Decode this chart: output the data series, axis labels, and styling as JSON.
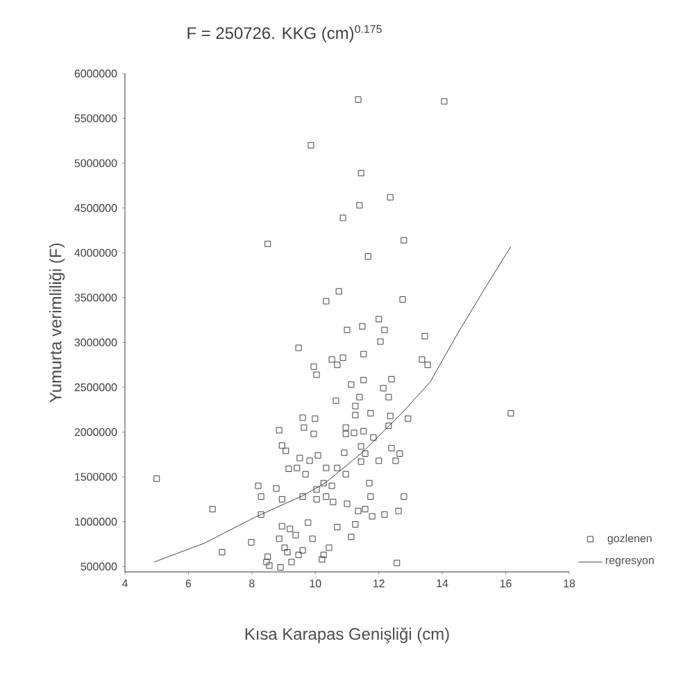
{
  "chart_data": {
    "type": "scatter",
    "title": "F = 250726. KKG (cm)$^{0.175}$",
    "xlabel": "Kısa Karapas Genişliği (cm)",
    "ylabel": "Yumurta verimliliği (F)",
    "xlim": [
      4,
      18
    ],
    "xticks": [
      4,
      6,
      8,
      10,
      12,
      14,
      16,
      18
    ],
    "ylim": [
      440000,
      6000000
    ],
    "yticks": [
      500000,
      1000000,
      1500000,
      2000000,
      2500000,
      3000000,
      3500000,
      4000000,
      4500000,
      5000000,
      5500000,
      6000000
    ],
    "grid": false,
    "legend": "bottom right",
    "series": [
      {
        "name": "gozlenen",
        "marker": "square",
        "color": "#404040",
        "x": [
          11.35,
          14.06,
          9.86,
          11.44,
          12.36,
          11.39,
          10.87,
          8.5,
          12.79,
          11.66,
          10.74,
          10.34,
          12.75,
          11.0,
          11.48,
          12.0,
          12.18,
          12.05,
          13.45,
          9.47,
          10.52,
          10.87,
          10.69,
          11.52,
          13.36,
          13.54,
          9.95,
          10.04,
          11.13,
          11.52,
          12.4,
          12.14,
          11.39,
          12.31,
          10.65,
          11.26,
          11.26,
          11.74,
          12.36,
          9.6,
          9.99,
          12.31,
          12.92,
          8.86,
          9.64,
          9.95,
          10.96,
          10.96,
          11.22,
          11.52,
          11.83,
          8.95,
          9.07,
          10.91,
          11.44,
          11.57,
          12.4,
          12.66,
          12.53,
          9.51,
          9.82,
          10.08,
          11.44,
          12.0,
          9.16,
          9.42,
          9.69,
          10.34,
          10.69,
          10.96,
          8.2,
          8.77,
          8.29,
          8.95,
          9.6,
          10.04,
          10.26,
          10.52,
          10.04,
          10.34,
          10.56,
          11.0,
          11.7,
          11.74,
          12.79,
          6.76,
          8.29,
          11.35,
          11.57,
          11.79,
          12.18,
          12.62,
          8.95,
          9.2,
          9.77,
          10.69,
          11.26,
          8.86,
          9.38,
          9.91,
          11.13,
          7.98,
          9.03,
          9.6,
          10.43,
          7.06,
          9.12,
          9.47,
          10.26,
          8.5,
          8.46,
          9.25,
          10.21,
          8.55,
          8.9,
          12.57,
          5.0,
          16.16
        ],
        "values": [
          5710000,
          5690000,
          5200000,
          4890000,
          4620000,
          4530000,
          4390000,
          4100000,
          4140000,
          3960000,
          3570000,
          3460000,
          3480000,
          3140000,
          3180000,
          3260000,
          3140000,
          3010000,
          3070000,
          2940000,
          2810000,
          2830000,
          2750000,
          2870000,
          2810000,
          2750000,
          2730000,
          2640000,
          2530000,
          2580000,
          2590000,
          2490000,
          2390000,
          2390000,
          2350000,
          2290000,
          2190000,
          2210000,
          2180000,
          2160000,
          2150000,
          2070000,
          2150000,
          2020000,
          2050000,
          1980000,
          2050000,
          1980000,
          1990000,
          2010000,
          1940000,
          1850000,
          1790000,
          1770000,
          1840000,
          1760000,
          1820000,
          1760000,
          1680000,
          1710000,
          1680000,
          1740000,
          1670000,
          1680000,
          1590000,
          1600000,
          1530000,
          1600000,
          1600000,
          1530000,
          1400000,
          1370000,
          1280000,
          1250000,
          1280000,
          1360000,
          1430000,
          1400000,
          1250000,
          1280000,
          1220000,
          1200000,
          1430000,
          1280000,
          1280000,
          1140000,
          1080000,
          1120000,
          1140000,
          1060000,
          1080000,
          1120000,
          950000,
          920000,
          990000,
          940000,
          970000,
          810000,
          850000,
          810000,
          830000,
          770000,
          710000,
          680000,
          710000,
          660000,
          660000,
          630000,
          630000,
          610000,
          550000,
          550000,
          580000,
          510000,
          490000,
          540000,
          1480000,
          2210000
        ]
      },
      {
        "name": "regresyon",
        "type": "line",
        "marker": "none",
        "line_style": "solid",
        "color": "#404040",
        "x": [
          4.92,
          6.5,
          8.1,
          9.6,
          10.3,
          11.44,
          12.75,
          13.62,
          14.5,
          15.37,
          16.16
        ],
        "values": [
          550000,
          760000,
          1050000,
          1290000,
          1430000,
          1760000,
          2220000,
          2560000,
          3110000,
          3620000,
          4070000
        ]
      }
    ]
  }
}
